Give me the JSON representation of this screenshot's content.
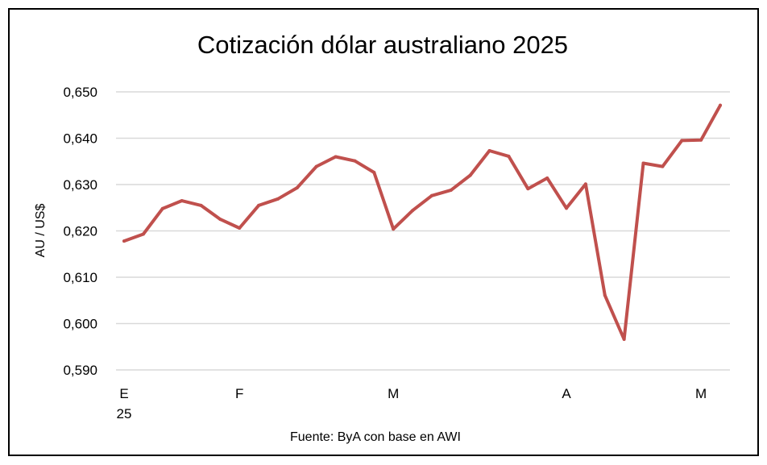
{
  "chart_data": {
    "type": "line",
    "title": "Cotización dólar australiano 2025",
    "ylabel": "AU / US$",
    "xlabel": "",
    "source": "Fuente: ByA con base en AWI",
    "ylim": [
      0.59,
      0.65
    ],
    "yticks": [
      0.59,
      0.6,
      0.61,
      0.62,
      0.63,
      0.64,
      0.65
    ],
    "ytick_labels": [
      "0,590",
      "0,600",
      "0,610",
      "0,620",
      "0,630",
      "0,640",
      "0,650"
    ],
    "grid": true,
    "legend": "none",
    "line_color": "#c0504d",
    "x_month_labels": [
      {
        "index": 0,
        "label": "E",
        "sublabel": "25"
      },
      {
        "index": 6,
        "label": "F",
        "sublabel": ""
      },
      {
        "index": 14,
        "label": "M",
        "sublabel": ""
      },
      {
        "index": 23,
        "label": "A",
        "sublabel": ""
      },
      {
        "index": 30,
        "label": "M",
        "sublabel": ""
      }
    ],
    "x": [
      0,
      1,
      2,
      3,
      4,
      5,
      6,
      7,
      8,
      9,
      10,
      11,
      12,
      13,
      14,
      15,
      16,
      17,
      18,
      19,
      20,
      21,
      22,
      23,
      24,
      25,
      26,
      27,
      28,
      29,
      30,
      31
    ],
    "series": [
      {
        "values": [
          0.6178,
          0.6193,
          0.6248,
          0.6265,
          0.6255,
          0.6225,
          0.6206,
          0.6255,
          0.6269,
          0.6293,
          0.6339,
          0.636,
          0.6351,
          0.6326,
          0.6204,
          0.6244,
          0.6276,
          0.6288,
          0.632,
          0.6373,
          0.6361,
          0.6291,
          0.6314,
          0.6249,
          0.6301,
          0.6061,
          0.5966,
          0.6346,
          0.6339,
          0.6395,
          0.6396,
          0.6471
        ]
      }
    ]
  }
}
